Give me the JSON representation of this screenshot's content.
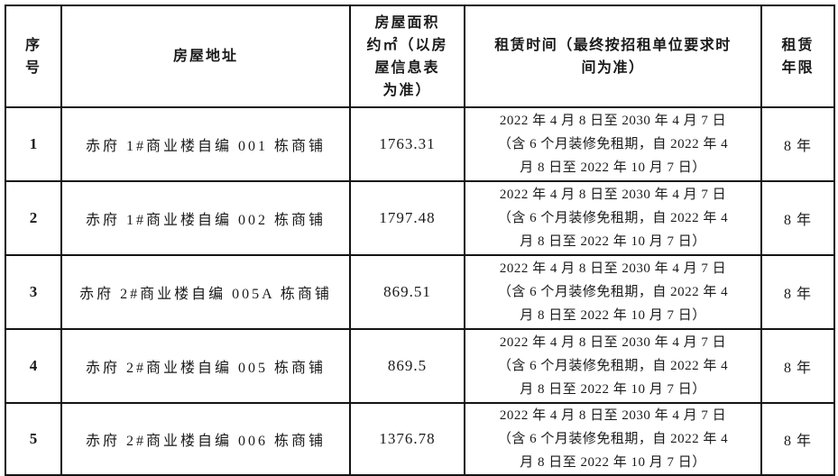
{
  "table": {
    "columns": [
      {
        "id": "seq",
        "label": "序\n号"
      },
      {
        "id": "address",
        "label": "房屋地址"
      },
      {
        "id": "area",
        "label": "房屋面积\n约㎡（以房\n屋信息表\n为准）"
      },
      {
        "id": "lease_time",
        "label": "租赁时间（最终按招租单位要求时\n间为准）"
      },
      {
        "id": "lease_term",
        "label": "租赁\n年限"
      }
    ],
    "rows": [
      {
        "seq": "1",
        "address": "赤府 1#商业楼自编 001 栋商铺",
        "area": "1763.31",
        "lease_time": "2022 年 4 月 8 日至 2030 年 4 月 7 日\n（含 6 个月装修免租期，自 2022 年 4\n月 8 日至 2022 年 10 月 7 日）",
        "lease_term": "8 年"
      },
      {
        "seq": "2",
        "address": "赤府 1#商业楼自编 002 栋商铺",
        "area": "1797.48",
        "lease_time": "2022 年 4 月 8 日至 2030 年 4 月 7 日\n（含 6 个月装修免租期，自 2022 年 4\n月 8 日至 2022 年 10 月 7 日）",
        "lease_term": "8 年"
      },
      {
        "seq": "3",
        "address": "赤府 2#商业楼自编 005A 栋商铺",
        "area": "869.51",
        "lease_time": "2022 年 4 月 8 日至 2030 年 4 月 7 日\n（含 6 个月装修免租期，自 2022 年 4\n月 8 日至 2022 年 10 月 7 日）",
        "lease_term": "8 年"
      },
      {
        "seq": "4",
        "address": "赤府 2#商业楼自编 005 栋商铺",
        "area": "869.5",
        "lease_time": "2022 年 4 月 8 日至 2030 年 4 月 7 日\n（含 6 个月装修免租期，自 2022 年 4\n月 8 日至 2022 年 10 月 7 日）",
        "lease_term": "8 年"
      },
      {
        "seq": "5",
        "address": "赤府 2#商业楼自编 006 栋商铺",
        "area": "1376.78",
        "lease_time": "2022 年 4 月 8 日至 2030 年 4 月 7 日\n（含 6 个月装修免租期，自 2022 年 4\n月 8 日至 2022 年 10 月 7 日）",
        "lease_term": "8 年"
      }
    ],
    "colors": {
      "border": "#141414",
      "text": "#1a1a1a",
      "background": "#ffffff"
    }
  }
}
